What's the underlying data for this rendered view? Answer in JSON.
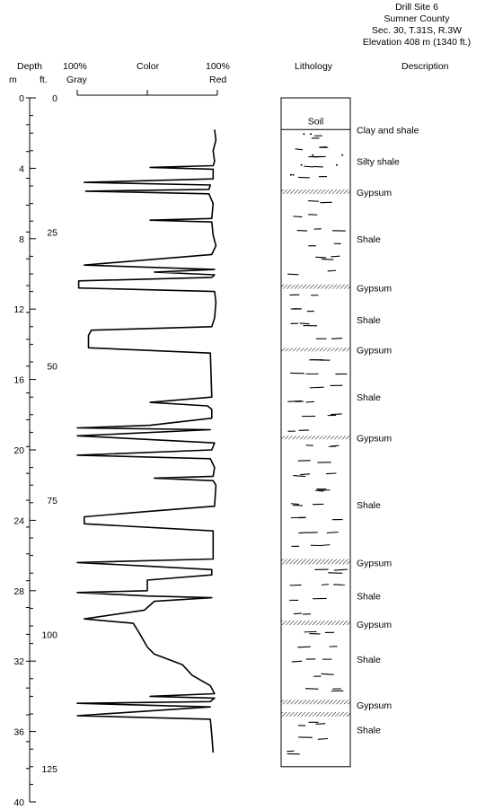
{
  "site": {
    "title": "Drill Site 6",
    "county": "Sumner County",
    "section": "Sec. 30, T.31S, R.3W",
    "elevation": "Elevation 408 m (1340 ft.)"
  },
  "headers": {
    "depth": "Depth",
    "m": "m",
    "ft": "ft.",
    "gray_pct": "100%",
    "gray": "Gray",
    "color": "Color",
    "red_pct": "100%",
    "red": "Red",
    "lithology": "Lithology",
    "description": "Description"
  },
  "depth_axis": {
    "m_ticks": [
      "0",
      "4",
      "8",
      "12",
      "16",
      "20",
      "24",
      "28",
      "32",
      "36",
      "40"
    ],
    "ft_ticks": [
      "0",
      "25",
      "50",
      "75",
      "100",
      "125"
    ]
  },
  "color_curve": {
    "unit": "fraction red (0 = 100% Gray, 1 = 100% Red)",
    "points": [
      [
        1.8,
        0.98
      ],
      [
        2.4,
        0.99
      ],
      [
        3.0,
        0.97
      ],
      [
        3.6,
        0.98
      ],
      [
        3.85,
        0.97
      ],
      [
        3.95,
        0.52
      ],
      [
        4.05,
        0.97
      ],
      [
        4.6,
        0.97
      ],
      [
        4.8,
        0.05
      ],
      [
        4.95,
        0.95
      ],
      [
        5.2,
        0.94
      ],
      [
        5.3,
        0.06
      ],
      [
        5.45,
        0.94
      ],
      [
        6.0,
        0.97
      ],
      [
        6.85,
        0.96
      ],
      [
        6.95,
        0.52
      ],
      [
        7.05,
        0.96
      ],
      [
        7.8,
        0.97
      ],
      [
        8.4,
        0.99
      ],
      [
        8.9,
        0.96
      ],
      [
        9.5,
        0.05
      ],
      [
        9.75,
        0.98
      ],
      [
        9.9,
        0.55
      ],
      [
        10.05,
        0.98
      ],
      [
        10.2,
        0.96
      ],
      [
        10.4,
        0.01
      ],
      [
        10.8,
        0.01
      ],
      [
        11.0,
        0.98
      ],
      [
        11.6,
        0.99
      ],
      [
        12.5,
        0.98
      ],
      [
        13.0,
        0.96
      ],
      [
        13.2,
        0.1
      ],
      [
        13.5,
        0.08
      ],
      [
        14.2,
        0.08
      ],
      [
        14.5,
        0.95
      ],
      [
        17.0,
        0.96
      ],
      [
        17.3,
        0.52
      ],
      [
        17.5,
        0.93
      ],
      [
        17.7,
        0.96
      ],
      [
        18.2,
        0.96
      ],
      [
        18.6,
        0.52
      ],
      [
        18.75,
        0.0
      ],
      [
        18.85,
        0.95
      ],
      [
        19.2,
        0.0
      ],
      [
        19.6,
        0.98
      ],
      [
        20.0,
        0.96
      ],
      [
        20.3,
        0.0
      ],
      [
        20.5,
        0.95
      ],
      [
        21.0,
        0.98
      ],
      [
        21.5,
        0.97
      ],
      [
        21.6,
        0.55
      ],
      [
        21.75,
        0.97
      ],
      [
        22.0,
        0.99
      ],
      [
        23.2,
        0.98
      ],
      [
        23.5,
        0.5
      ],
      [
        23.8,
        0.05
      ],
      [
        24.2,
        0.05
      ],
      [
        24.6,
        0.97
      ],
      [
        26.2,
        0.97
      ],
      [
        26.4,
        0.0
      ],
      [
        26.6,
        0.5
      ],
      [
        26.8,
        0.96
      ],
      [
        27.1,
        0.96
      ],
      [
        27.4,
        0.5
      ],
      [
        28.0,
        0.5
      ],
      [
        28.1,
        0.0
      ],
      [
        28.3,
        0.5
      ],
      [
        28.4,
        0.96
      ],
      [
        28.6,
        0.55
      ],
      [
        29.1,
        0.48
      ],
      [
        29.6,
        0.05
      ],
      [
        29.85,
        0.4
      ],
      [
        30.5,
        0.45
      ],
      [
        31.2,
        0.5
      ],
      [
        31.6,
        0.55
      ],
      [
        32.2,
        0.75
      ],
      [
        32.8,
        0.82
      ],
      [
        33.4,
        0.95
      ],
      [
        33.85,
        0.98
      ],
      [
        34.0,
        0.52
      ],
      [
        34.1,
        0.98
      ],
      [
        34.3,
        0.95
      ],
      [
        34.4,
        0.0
      ],
      [
        34.6,
        0.95
      ],
      [
        35.1,
        0.0
      ],
      [
        35.3,
        0.95
      ],
      [
        36.2,
        0.96
      ],
      [
        37.2,
        0.97
      ]
    ]
  },
  "lithology": [
    {
      "type": "soil",
      "from": 0,
      "to": 1.8,
      "label": "Soil"
    },
    {
      "type": "clay-shale",
      "from": 1.8,
      "to": 2.4
    },
    {
      "type": "shale",
      "from": 2.4,
      "to": 3.0
    },
    {
      "type": "silty-shale",
      "from": 3.0,
      "to": 5.2
    },
    {
      "type": "gypsum",
      "from": 5.2,
      "to": 5.45
    },
    {
      "type": "shale",
      "from": 5.45,
      "to": 10.6
    },
    {
      "type": "gypsum",
      "from": 10.6,
      "to": 10.85
    },
    {
      "type": "shale",
      "from": 10.85,
      "to": 14.2
    },
    {
      "type": "gypsum",
      "from": 14.2,
      "to": 14.4
    },
    {
      "type": "shale",
      "from": 14.4,
      "to": 19.2
    },
    {
      "type": "gypsum",
      "from": 19.2,
      "to": 19.4
    },
    {
      "type": "shale",
      "from": 19.4,
      "to": 26.2
    },
    {
      "type": "gypsum",
      "from": 26.2,
      "to": 26.5
    },
    {
      "type": "shale",
      "from": 26.5,
      "to": 29.7
    },
    {
      "type": "gypsum",
      "from": 29.7,
      "to": 29.95
    },
    {
      "type": "shale",
      "from": 29.95,
      "to": 34.2
    },
    {
      "type": "gypsum",
      "from": 34.2,
      "to": 34.45
    },
    {
      "type": "gypsum",
      "from": 34.9,
      "to": 35.15
    },
    {
      "type": "shale",
      "from": 35.15,
      "to": 38.0
    }
  ],
  "descriptions": [
    {
      "label": "Clay and shale",
      "depth": 1.8
    },
    {
      "label": "Silty shale",
      "depth": 3.6
    },
    {
      "label": "Gypsum",
      "depth": 5.35
    },
    {
      "label": "Shale",
      "depth": 8.0
    },
    {
      "label": "Gypsum",
      "depth": 10.8
    },
    {
      "label": "Shale",
      "depth": 12.6
    },
    {
      "label": "Gypsum",
      "depth": 14.3
    },
    {
      "label": "Shale",
      "depth": 17.0
    },
    {
      "label": "Gypsum",
      "depth": 19.3
    },
    {
      "label": "Shale",
      "depth": 23.1
    },
    {
      "label": "Gypsum",
      "depth": 26.4
    },
    {
      "label": "Shale",
      "depth": 28.3
    },
    {
      "label": "Gypsum",
      "depth": 29.9
    },
    {
      "label": "Shale",
      "depth": 31.9
    },
    {
      "label": "Gypsum",
      "depth": 34.5
    },
    {
      "label": "Shale",
      "depth": 35.9
    }
  ]
}
